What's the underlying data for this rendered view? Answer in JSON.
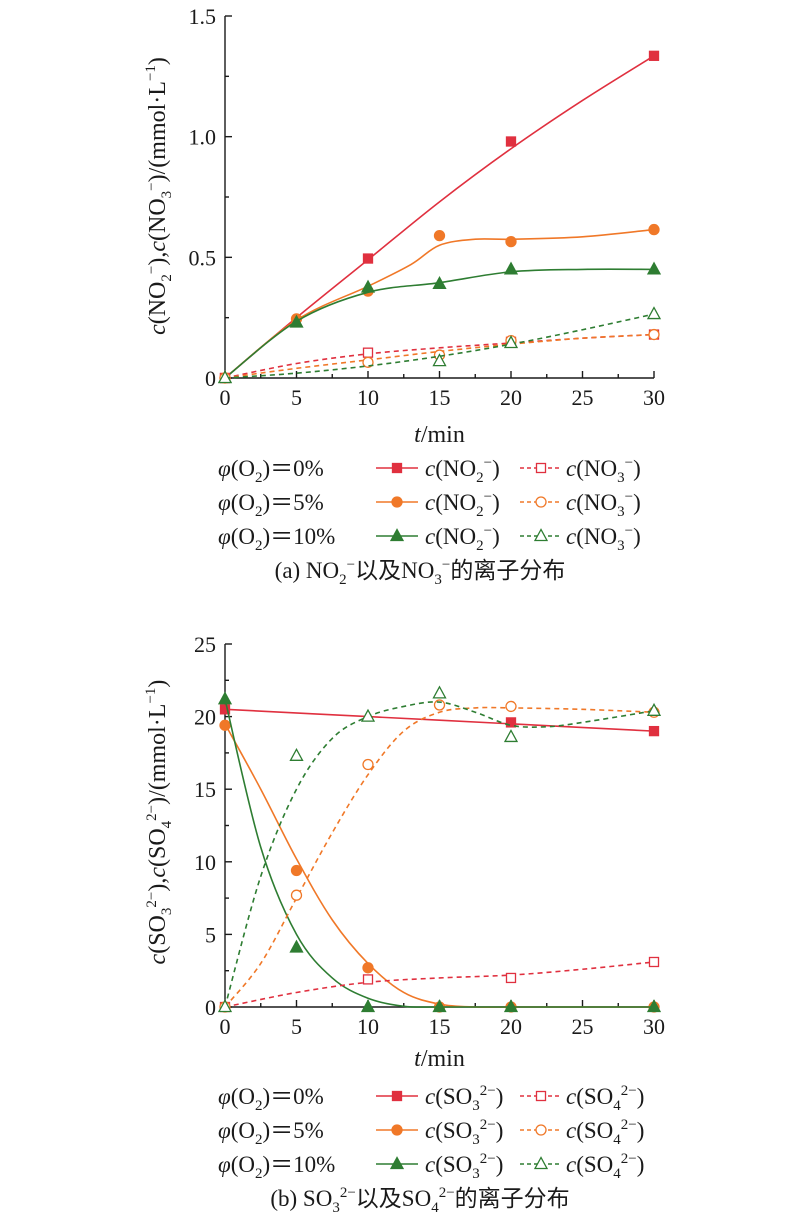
{
  "colors": {
    "phi0": "#e0303f",
    "phi5": "#f07828",
    "phi10": "#2e7d32"
  },
  "chart_data": [
    {
      "type": "line",
      "caption": "(a) NO₂⁻以及NO₃⁻的离子分布",
      "xlabel": "t/min",
      "ylabel": "c(NO₂⁻),c(NO₃⁻)/(mmol·L⁻¹)",
      "xlim": [
        0,
        30
      ],
      "ylim": [
        0,
        1.5
      ],
      "xticks": [
        0,
        5,
        10,
        15,
        20,
        25,
        30
      ],
      "yticks": [
        0,
        0.5,
        1.0,
        1.5
      ],
      "ytick_labels": [
        "0",
        "0.5",
        "1.0",
        "1.5"
      ],
      "legend": [
        {
          "condition": "φ(O₂)＝0%",
          "solid": "c(NO₂⁻)",
          "dashed": "c(NO₃⁻)"
        },
        {
          "condition": "φ(O₂)＝5%",
          "solid": "c(NO₂⁻)",
          "dashed": "c(NO₃⁻)"
        },
        {
          "condition": "φ(O₂)＝10%",
          "solid": "c(NO₂⁻)",
          "dashed": "c(NO₃⁻)"
        }
      ],
      "series": [
        {
          "group": 0,
          "style": "solid",
          "marker": "square-filled",
          "x": [
            0,
            10,
            20,
            30
          ],
          "y": [
            0,
            0.495,
            0.98,
            1.335
          ],
          "curve_x": [
            0,
            5,
            10,
            15,
            20,
            25,
            30
          ],
          "curve_y": [
            0,
            0.25,
            0.49,
            0.73,
            0.95,
            1.15,
            1.335
          ]
        },
        {
          "group": 1,
          "style": "solid",
          "marker": "circle-filled",
          "x": [
            0,
            5,
            10,
            15,
            20,
            30
          ],
          "y": [
            0,
            0.245,
            0.36,
            0.59,
            0.565,
            0.615
          ],
          "curve_x": [
            0,
            5,
            10,
            13,
            15,
            17.5,
            20,
            25,
            30
          ],
          "curve_y": [
            0,
            0.24,
            0.38,
            0.47,
            0.55,
            0.575,
            0.575,
            0.585,
            0.615
          ]
        },
        {
          "group": 2,
          "style": "solid",
          "marker": "triangle-filled",
          "x": [
            0,
            5,
            10,
            15,
            20,
            30
          ],
          "y": [
            0,
            0.23,
            0.375,
            0.39,
            0.45,
            0.45
          ],
          "curve_x": [
            0,
            5,
            10,
            15,
            20,
            25,
            30
          ],
          "curve_y": [
            0,
            0.235,
            0.355,
            0.395,
            0.44,
            0.45,
            0.45
          ]
        },
        {
          "group": 0,
          "style": "dashed",
          "marker": "square-open",
          "x": [
            0,
            10,
            20,
            30
          ],
          "y": [
            0,
            0.105,
            0.15,
            0.18
          ],
          "curve_x": [
            0,
            5,
            10,
            15,
            20,
            25,
            30
          ],
          "curve_y": [
            0,
            0.06,
            0.1,
            0.125,
            0.145,
            0.165,
            0.18
          ]
        },
        {
          "group": 1,
          "style": "dashed",
          "marker": "circle-open",
          "x": [
            0,
            10,
            15,
            20,
            30
          ],
          "y": [
            0,
            0.065,
            0.095,
            0.155,
            0.18
          ],
          "curve_x": [
            0,
            5,
            10,
            15,
            20,
            25,
            30
          ],
          "curve_y": [
            0,
            0.04,
            0.075,
            0.11,
            0.14,
            0.165,
            0.18
          ]
        },
        {
          "group": 2,
          "style": "dashed",
          "marker": "triangle-open",
          "x": [
            0,
            15,
            20,
            30
          ],
          "y": [
            0,
            0.07,
            0.145,
            0.265
          ],
          "curve_x": [
            0,
            5,
            10,
            15,
            20,
            25,
            30
          ],
          "curve_y": [
            0,
            0.02,
            0.05,
            0.09,
            0.14,
            0.2,
            0.265
          ]
        }
      ]
    },
    {
      "type": "line",
      "caption": "(b) SO₃²⁻以及SO₄²⁻的离子分布",
      "xlabel": "t/min",
      "ylabel": "c(SO₃²⁻),c(SO₄²⁻)/(mmol·L⁻¹)",
      "xlim": [
        0,
        30
      ],
      "ylim": [
        0,
        25
      ],
      "xticks": [
        0,
        5,
        10,
        15,
        20,
        25,
        30
      ],
      "yticks": [
        0,
        5,
        10,
        15,
        20,
        25
      ],
      "ytick_labels": [
        "0",
        "5",
        "10",
        "15",
        "20",
        "25"
      ],
      "legend": [
        {
          "condition": "φ(O₂)＝0%",
          "solid": "c(SO₃²⁻)",
          "dashed": "c(SO₄²⁻)"
        },
        {
          "condition": "φ(O₂)＝5%",
          "solid": "c(SO₃²⁻)",
          "dashed": "c(SO₄²⁻)"
        },
        {
          "condition": "φ(O₂)＝10%",
          "solid": "c(SO₃²⁻)",
          "dashed": "c(SO₄²⁻)"
        }
      ],
      "series": [
        {
          "group": 0,
          "style": "solid",
          "marker": "square-filled",
          "x": [
            0,
            20,
            30
          ],
          "y": [
            20.5,
            19.6,
            19.0
          ],
          "curve_x": [
            0,
            10,
            20,
            30
          ],
          "curve_y": [
            20.5,
            20.0,
            19.5,
            19.0
          ]
        },
        {
          "group": 1,
          "style": "solid",
          "marker": "circle-filled",
          "x": [
            0,
            5,
            10,
            15,
            20,
            30
          ],
          "y": [
            19.4,
            9.4,
            2.7,
            0,
            0,
            0
          ],
          "curve_x": [
            0,
            2.5,
            5,
            7.5,
            10,
            12.5,
            15,
            17.5,
            20,
            25,
            30
          ],
          "curve_y": [
            19.5,
            15.0,
            10.2,
            6.0,
            3.0,
            1.0,
            0.2,
            0,
            0,
            0,
            0
          ]
        },
        {
          "group": 2,
          "style": "solid",
          "marker": "triangle-filled",
          "x": [
            0,
            5,
            10,
            15,
            20,
            30
          ],
          "y": [
            21.2,
            4.1,
            0,
            0,
            0,
            0
          ],
          "curve_x": [
            0,
            2.5,
            5,
            7.5,
            10,
            12.5,
            15,
            20,
            30
          ],
          "curve_y": [
            21.2,
            11.0,
            5.0,
            2.0,
            0.6,
            0.05,
            0,
            0,
            0
          ]
        },
        {
          "group": 0,
          "style": "dashed",
          "marker": "square-open",
          "x": [
            0,
            10,
            20,
            30
          ],
          "y": [
            0,
            1.9,
            2.0,
            3.1
          ],
          "curve_x": [
            0,
            5,
            10,
            15,
            20,
            25,
            30
          ],
          "curve_y": [
            0,
            1.0,
            1.7,
            2.0,
            2.2,
            2.6,
            3.1
          ]
        },
        {
          "group": 1,
          "style": "dashed",
          "marker": "circle-open",
          "x": [
            0,
            5,
            10,
            15,
            20,
            30
          ],
          "y": [
            0,
            7.7,
            16.7,
            20.8,
            20.7,
            20.3
          ],
          "curve_x": [
            0,
            2.5,
            5,
            7.5,
            10,
            12.5,
            15,
            17.5,
            20,
            25,
            30
          ],
          "curve_y": [
            0,
            3.0,
            7.5,
            12.0,
            16.0,
            19.0,
            20.3,
            20.6,
            20.6,
            20.5,
            20.3
          ]
        },
        {
          "group": 2,
          "style": "dashed",
          "marker": "triangle-open",
          "x": [
            0,
            5,
            10,
            15,
            20,
            30
          ],
          "y": [
            0,
            17.3,
            20.0,
            21.6,
            18.6,
            20.4
          ],
          "curve_x": [
            0,
            2.5,
            5,
            7.5,
            10,
            12.5,
            15,
            17.5,
            20,
            22.5,
            25,
            30
          ],
          "curve_y": [
            0,
            9.0,
            15.0,
            18.5,
            20.0,
            20.7,
            21.0,
            20.3,
            19.4,
            19.3,
            19.6,
            20.4
          ]
        }
      ]
    }
  ]
}
